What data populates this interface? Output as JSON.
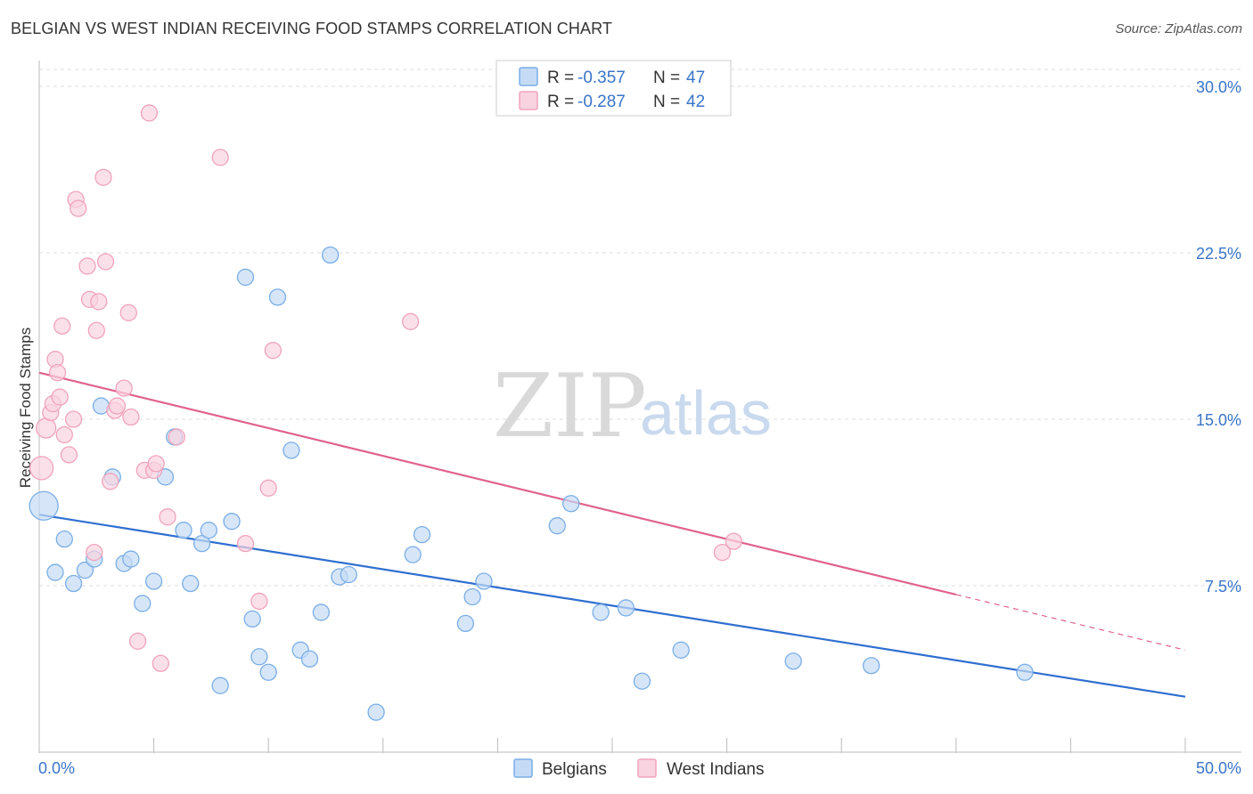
{
  "chart_data": {
    "type": "scatter",
    "title": "BELGIAN VS WEST INDIAN RECEIVING FOOD STAMPS CORRELATION CHART",
    "source": "Source: ZipAtlas.com",
    "ylabel": "Receiving Food Stamps",
    "xlabel": "",
    "xlim": [
      0,
      50
    ],
    "ylim": [
      0,
      30.5
    ],
    "x_tick_labels": [
      "0.0%",
      "50.0%"
    ],
    "y_ticks": [
      7.5,
      15.0,
      22.5,
      30.0
    ],
    "y_tick_labels": [
      "7.5%",
      "15.0%",
      "22.5%",
      "30.0%"
    ],
    "watermark": {
      "zip": "ZIP",
      "atlas": "atlas"
    },
    "legend": {
      "r_label": "R =",
      "n_label": "N =",
      "entries": [
        {
          "r": "-0.357",
          "n": "47"
        },
        {
          "r": "-0.287",
          "n": "42"
        }
      ]
    },
    "series": [
      {
        "name": "Belgians",
        "color": "#7aaee6",
        "fill": "#c5dbf5",
        "line_color": "#2f6fd0",
        "trend": {
          "x0": 0,
          "y0": 10.7,
          "x1": 50,
          "y1": 2.5
        },
        "points": [
          [
            0.2,
            11.1,
            16
          ],
          [
            0.7,
            8.1,
            9
          ],
          [
            1.1,
            9.6,
            9
          ],
          [
            1.5,
            7.6,
            9
          ],
          [
            2.0,
            8.2,
            9
          ],
          [
            2.4,
            8.7,
            9
          ],
          [
            2.7,
            15.6,
            9
          ],
          [
            3.2,
            12.4,
            9
          ],
          [
            3.7,
            8.5,
            9
          ],
          [
            4.0,
            8.7,
            9
          ],
          [
            4.5,
            6.7,
            9
          ],
          [
            5.0,
            7.7,
            9
          ],
          [
            5.5,
            12.4,
            9
          ],
          [
            5.9,
            14.2,
            9
          ],
          [
            6.3,
            10.0,
            9
          ],
          [
            6.6,
            7.6,
            9
          ],
          [
            7.1,
            9.4,
            9
          ],
          [
            7.4,
            10.0,
            9
          ],
          [
            7.9,
            3.0,
            9
          ],
          [
            8.4,
            10.4,
            9
          ],
          [
            9.0,
            21.4,
            9
          ],
          [
            9.3,
            6.0,
            9
          ],
          [
            9.6,
            4.3,
            9
          ],
          [
            10.0,
            3.6,
            9
          ],
          [
            10.4,
            20.5,
            9
          ],
          [
            11.0,
            13.6,
            9
          ],
          [
            11.4,
            4.6,
            9
          ],
          [
            11.8,
            4.2,
            9
          ],
          [
            12.3,
            6.3,
            9
          ],
          [
            12.7,
            22.4,
            9
          ],
          [
            13.1,
            7.9,
            9
          ],
          [
            13.5,
            8.0,
            9
          ],
          [
            14.7,
            1.8,
            9
          ],
          [
            16.3,
            8.9,
            9
          ],
          [
            16.7,
            9.8,
            9
          ],
          [
            18.6,
            5.8,
            9
          ],
          [
            18.9,
            7.0,
            9
          ],
          [
            19.4,
            7.7,
            9
          ],
          [
            22.6,
            10.2,
            9
          ],
          [
            23.2,
            11.2,
            9
          ],
          [
            24.5,
            6.3,
            9
          ],
          [
            25.6,
            6.5,
            9
          ],
          [
            26.3,
            3.2,
            9
          ],
          [
            28.0,
            4.6,
            9
          ],
          [
            32.9,
            4.1,
            9
          ],
          [
            36.3,
            3.9,
            9
          ],
          [
            43.0,
            3.6,
            9
          ]
        ]
      },
      {
        "name": "West Indians",
        "color": "#f0a3bb",
        "fill": "#f9d3df",
        "line_color": "#e0628d",
        "trend": {
          "x0": 0,
          "y0": 17.1,
          "x1": 40,
          "y1": 7.1
        },
        "trend_dash": {
          "x0": 40,
          "y0": 7.1,
          "x1": 50,
          "y1": 4.6
        },
        "points": [
          [
            0.1,
            12.8,
            13
          ],
          [
            0.3,
            14.6,
            11
          ],
          [
            0.5,
            15.3,
            9
          ],
          [
            0.6,
            15.7,
            9
          ],
          [
            0.7,
            17.7,
            9
          ],
          [
            0.8,
            17.1,
            9
          ],
          [
            0.9,
            16.0,
            9
          ],
          [
            1.0,
            19.2,
            9
          ],
          [
            1.1,
            14.3,
            9
          ],
          [
            1.3,
            13.4,
            9
          ],
          [
            1.5,
            15.0,
            9
          ],
          [
            1.6,
            24.9,
            9
          ],
          [
            1.7,
            24.5,
            9
          ],
          [
            2.1,
            21.9,
            9
          ],
          [
            2.2,
            20.4,
            9
          ],
          [
            2.4,
            9.0,
            9
          ],
          [
            2.5,
            19.0,
            9
          ],
          [
            2.6,
            20.3,
            9
          ],
          [
            2.8,
            25.9,
            9
          ],
          [
            2.9,
            22.1,
            9
          ],
          [
            3.1,
            12.2,
            9
          ],
          [
            3.3,
            15.4,
            9
          ],
          [
            3.4,
            15.6,
            9
          ],
          [
            3.7,
            16.4,
            9
          ],
          [
            3.9,
            19.8,
            9
          ],
          [
            4.0,
            15.1,
            9
          ],
          [
            4.3,
            5.0,
            9
          ],
          [
            4.6,
            12.7,
            9
          ],
          [
            4.8,
            28.8,
            9
          ],
          [
            5.0,
            12.7,
            9
          ],
          [
            5.1,
            13.0,
            9
          ],
          [
            5.3,
            4.0,
            9
          ],
          [
            5.6,
            10.6,
            9
          ],
          [
            6.0,
            14.2,
            9
          ],
          [
            7.9,
            26.8,
            9
          ],
          [
            9.0,
            9.4,
            9
          ],
          [
            9.6,
            6.8,
            9
          ],
          [
            10.0,
            11.9,
            9
          ],
          [
            10.2,
            18.1,
            9
          ],
          [
            16.2,
            19.4,
            9
          ],
          [
            29.8,
            9.0,
            9
          ],
          [
            30.3,
            9.5,
            9
          ]
        ]
      }
    ]
  }
}
